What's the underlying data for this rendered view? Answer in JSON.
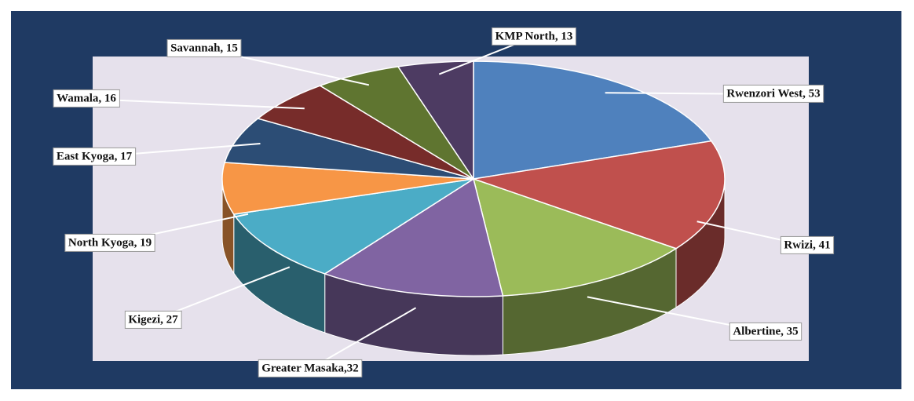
{
  "chart_data": {
    "type": "pie",
    "values": [
      53,
      41,
      35,
      32,
      27,
      19,
      17,
      16,
      15,
      13
    ],
    "value_labels": [
      "Rwenzori West, 53",
      "Rwizi, 41",
      "Albertine, 35",
      "Greater Masaka,32",
      "Kigezi, 27",
      "North Kyoga, 19",
      "East Kyoga, 17",
      "Wamala, 16",
      "Savannah, 15",
      "KMP North, 13"
    ],
    "colors": [
      "#4f81bd",
      "#c0504d",
      "#9bbb59",
      "#8064a2",
      "#4bacc6",
      "#f79646",
      "#2c4d75",
      "#772c2a",
      "#5f7530",
      "#4d3b62"
    ]
  }
}
